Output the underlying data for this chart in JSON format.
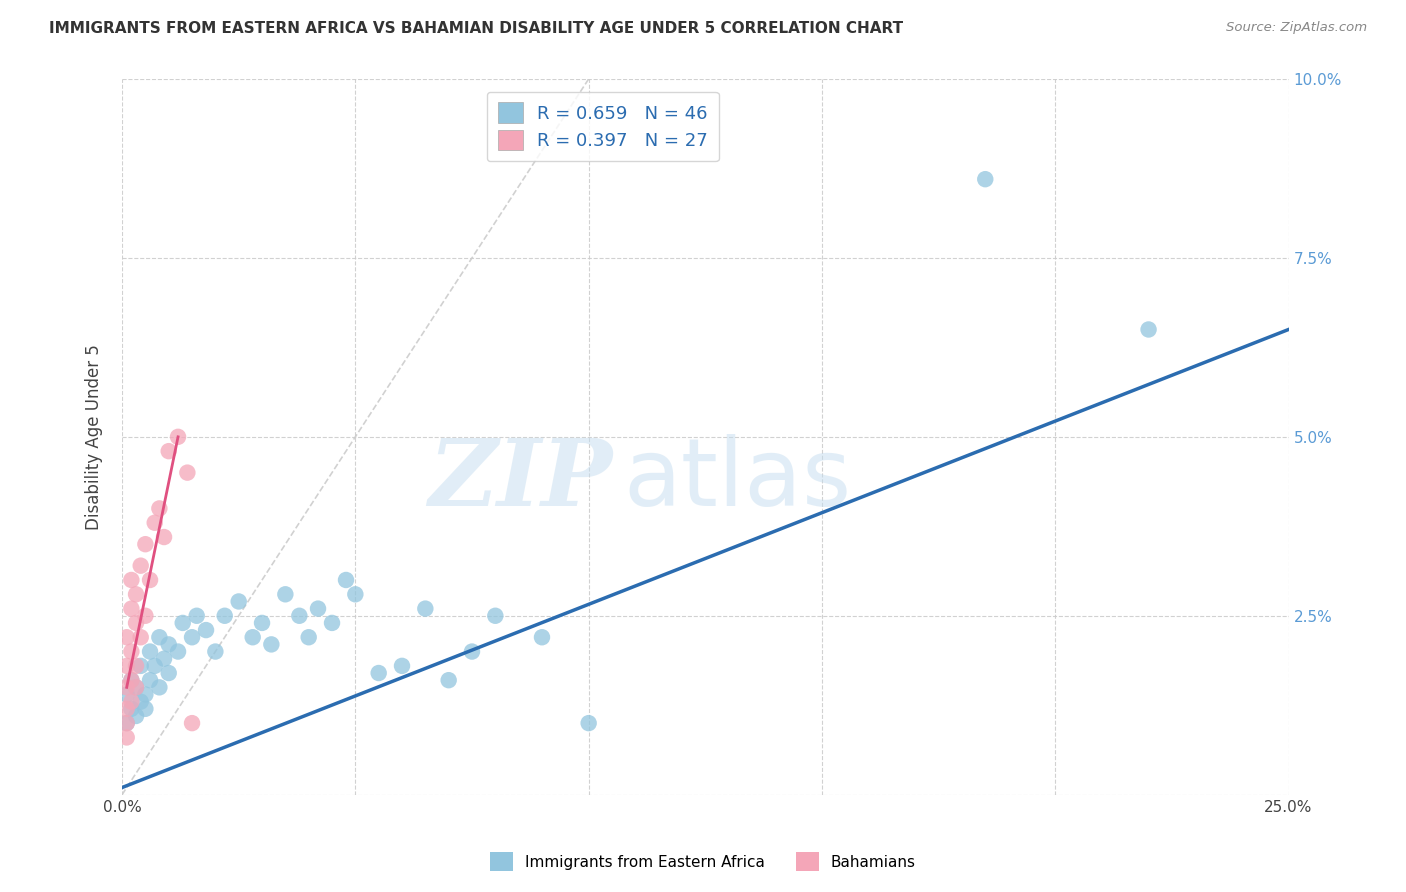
{
  "title": "IMMIGRANTS FROM EASTERN AFRICA VS BAHAMIAN DISABILITY AGE UNDER 5 CORRELATION CHART",
  "source": "Source: ZipAtlas.com",
  "ylabel": "Disability Age Under 5",
  "xlim": [
    0,
    0.25
  ],
  "ylim": [
    0,
    0.1
  ],
  "blue_R": "0.659",
  "blue_N": "46",
  "pink_R": "0.397",
  "pink_N": "27",
  "blue_color": "#92c5de",
  "pink_color": "#f4a6b8",
  "blue_line_color": "#2b6cb0",
  "pink_line_color": "#e05080",
  "blue_scatter": [
    [
      0.001,
      0.01
    ],
    [
      0.001,
      0.014
    ],
    [
      0.002,
      0.012
    ],
    [
      0.002,
      0.016
    ],
    [
      0.003,
      0.011
    ],
    [
      0.003,
      0.015
    ],
    [
      0.004,
      0.013
    ],
    [
      0.004,
      0.018
    ],
    [
      0.005,
      0.014
    ],
    [
      0.005,
      0.012
    ],
    [
      0.006,
      0.016
    ],
    [
      0.006,
      0.02
    ],
    [
      0.007,
      0.018
    ],
    [
      0.008,
      0.015
    ],
    [
      0.008,
      0.022
    ],
    [
      0.009,
      0.019
    ],
    [
      0.01,
      0.017
    ],
    [
      0.01,
      0.021
    ],
    [
      0.012,
      0.02
    ],
    [
      0.013,
      0.024
    ],
    [
      0.015,
      0.022
    ],
    [
      0.016,
      0.025
    ],
    [
      0.018,
      0.023
    ],
    [
      0.02,
      0.02
    ],
    [
      0.022,
      0.025
    ],
    [
      0.025,
      0.027
    ],
    [
      0.028,
      0.022
    ],
    [
      0.03,
      0.024
    ],
    [
      0.032,
      0.021
    ],
    [
      0.035,
      0.028
    ],
    [
      0.038,
      0.025
    ],
    [
      0.04,
      0.022
    ],
    [
      0.042,
      0.026
    ],
    [
      0.045,
      0.024
    ],
    [
      0.048,
      0.03
    ],
    [
      0.05,
      0.028
    ],
    [
      0.055,
      0.017
    ],
    [
      0.06,
      0.018
    ],
    [
      0.065,
      0.026
    ],
    [
      0.07,
      0.016
    ],
    [
      0.075,
      0.02
    ],
    [
      0.08,
      0.025
    ],
    [
      0.09,
      0.022
    ],
    [
      0.1,
      0.01
    ],
    [
      0.185,
      0.086
    ],
    [
      0.22,
      0.065
    ]
  ],
  "pink_scatter": [
    [
      0.001,
      0.01
    ],
    [
      0.001,
      0.012
    ],
    [
      0.001,
      0.015
    ],
    [
      0.001,
      0.018
    ],
    [
      0.001,
      0.022
    ],
    [
      0.002,
      0.013
    ],
    [
      0.002,
      0.016
    ],
    [
      0.002,
      0.02
    ],
    [
      0.002,
      0.026
    ],
    [
      0.002,
      0.03
    ],
    [
      0.003,
      0.015
    ],
    [
      0.003,
      0.018
    ],
    [
      0.003,
      0.024
    ],
    [
      0.003,
      0.028
    ],
    [
      0.004,
      0.022
    ],
    [
      0.004,
      0.032
    ],
    [
      0.005,
      0.025
    ],
    [
      0.005,
      0.035
    ],
    [
      0.006,
      0.03
    ],
    [
      0.007,
      0.038
    ],
    [
      0.008,
      0.04
    ],
    [
      0.009,
      0.036
    ],
    [
      0.01,
      0.048
    ],
    [
      0.012,
      0.05
    ],
    [
      0.014,
      0.045
    ],
    [
      0.001,
      0.008
    ],
    [
      0.015,
      0.01
    ]
  ],
  "blue_line_x": [
    0.0,
    0.25
  ],
  "blue_line_y": [
    0.001,
    0.065
  ],
  "pink_line_x": [
    0.001,
    0.012
  ],
  "pink_line_y": [
    0.015,
    0.05
  ],
  "diag_line_x": [
    0.0,
    0.1
  ],
  "diag_line_y": [
    0.0,
    0.1
  ],
  "bg_color": "#ffffff",
  "grid_color": "#cccccc",
  "legend_label_1": "Immigrants from Eastern Africa",
  "legend_label_2": "Bahamians"
}
